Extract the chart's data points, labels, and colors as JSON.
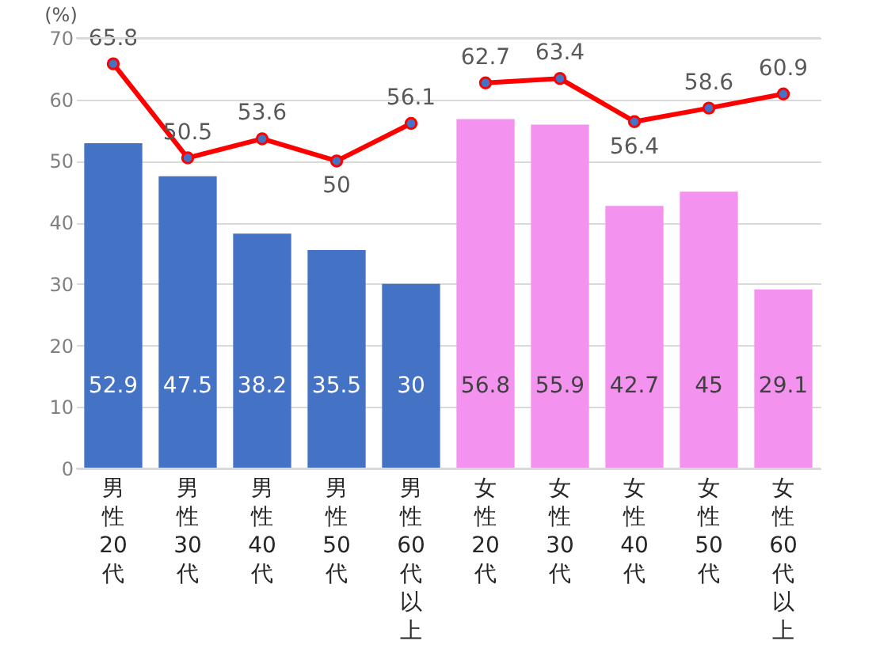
{
  "chart_data": {
    "type": "bar",
    "ylabel": "(%)",
    "categories": [
      "男性20代",
      "男性30代",
      "男性40代",
      "男性50代",
      "男性60代以上",
      "女性20代",
      "女性30代",
      "女性40代",
      "女性50代",
      "女性60代以上"
    ],
    "series": [
      {
        "values": [
          52.9,
          47.5,
          38.2,
          35.5,
          30,
          56.8,
          55.9,
          42.7,
          45,
          29.1
        ],
        "colors": [
          "#4472c4",
          "#4472c4",
          "#4472c4",
          "#4472c4",
          "#4472c4",
          "#f492f0",
          "#f492f0",
          "#f492f0",
          "#f492f0",
          "#f492f0"
        ]
      },
      {
        "type": "line",
        "color": "#ff0000",
        "values": [
          65.8,
          50.5,
          53.6,
          50,
          56.1,
          null,
          null,
          null,
          null,
          null
        ]
      },
      {
        "type": "line",
        "color": "#ff0000",
        "values": [
          null,
          null,
          null,
          null,
          null,
          62.7,
          63.4,
          56.4,
          58.6,
          60.9
        ]
      }
    ],
    "ylim": [
      0,
      70
    ],
    "yticks": [
      0,
      10,
      20,
      30,
      40,
      50,
      60,
      70
    ],
    "grid": "y",
    "marker": "circle",
    "data_labels": true
  }
}
